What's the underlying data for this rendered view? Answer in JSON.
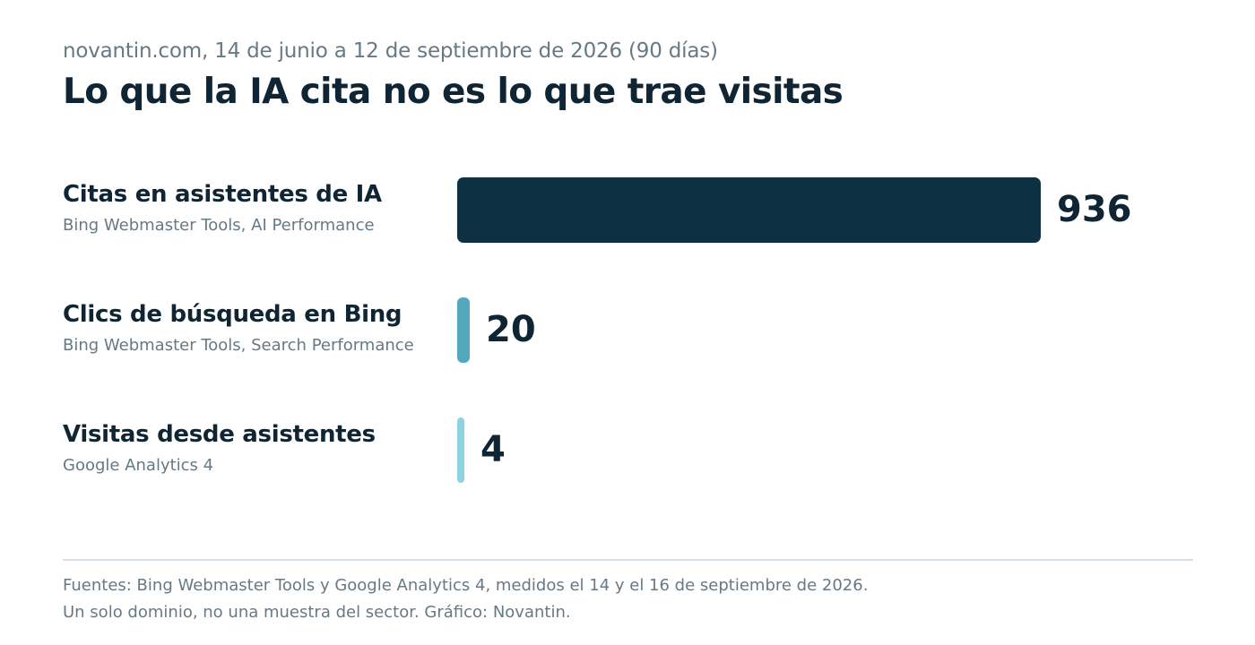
{
  "header": {
    "subtitle": "novantin.com, 14 de junio a 12 de septiembre de 2026 (90 días)",
    "title": "Lo que la IA cita no es lo que trae visitas"
  },
  "chart_data": {
    "type": "bar",
    "orientation": "horizontal",
    "categories": [
      "Citas en asistentes de IA",
      "Clics de búsqueda en Bing",
      "Visitas desde asistentes"
    ],
    "sources": [
      "Bing Webmaster Tools, AI Performance",
      "Bing Webmaster Tools, Search Performance",
      "Google Analytics 4"
    ],
    "values": [
      936,
      20,
      4
    ],
    "value_labels": [
      "936",
      "20",
      "4"
    ],
    "colors": [
      "#0d3142",
      "#54a8bd",
      "#8dd3e2"
    ],
    "grid": false,
    "legend": "none"
  },
  "footer": {
    "line1": "Fuentes: Bing Webmaster Tools y Google Analytics 4, medidos el 14 y el 16 de septiembre de 2026.",
    "line2": "Un solo dominio, no una muestra del sector. Gráfico: Novantin."
  }
}
